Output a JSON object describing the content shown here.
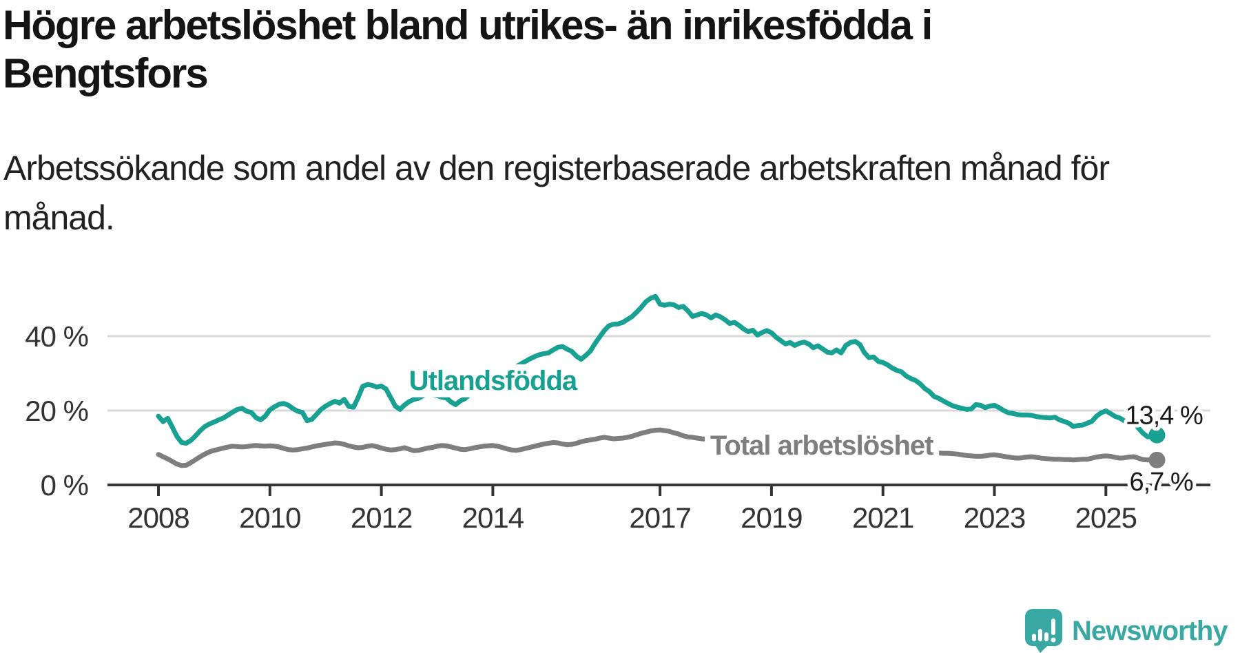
{
  "header": {
    "title_lines": [
      "Högre arbetslöshet bland utrikes- än inrikesfödda i",
      "Bengtsfors"
    ],
    "subtitle_lines": [
      "Arbetssökande som andel av den registerbaserade arbetskraften månad för",
      "månad."
    ]
  },
  "footer": {
    "brand": "Newsworthy",
    "brand_color": "#3aa8a2",
    "logo_icon": "speech-bubble-bar-chart"
  },
  "chart_data": {
    "type": "line",
    "frequency": "monthly",
    "x_start_year": 2008,
    "x_start_month": 1,
    "x_axis": {
      "tick_years": [
        2008,
        2010,
        2012,
        2014,
        2017,
        2019,
        2021,
        2023,
        2025
      ],
      "range_years": [
        2007.1,
        2026.9
      ]
    },
    "y_axis": {
      "ticks": [
        {
          "label": "0 %",
          "value": 0
        },
        {
          "label": "20 %",
          "value": 20
        },
        {
          "label": "40 %",
          "value": 40
        }
      ],
      "range": [
        0,
        55
      ],
      "grid": true
    },
    "grid_color": "#d9d9d9",
    "axis_color": "#333333",
    "legend_position": "inline-labels",
    "series": [
      {
        "name": "Utlandsfödda",
        "color": "#18a092",
        "end_label": "13,4 %",
        "label_pos": {
          "year": 2014.0,
          "value": 28.0
        },
        "values": [
          18.5,
          17.0,
          17.9,
          15.5,
          13.0,
          11.4,
          11.2,
          12.0,
          13.2,
          14.6,
          15.7,
          16.4,
          16.9,
          17.5,
          18.0,
          18.8,
          19.6,
          20.3,
          20.6,
          19.8,
          19.5,
          18.1,
          17.5,
          18.5,
          20.2,
          21.0,
          21.7,
          21.9,
          21.4,
          20.5,
          19.8,
          19.5,
          17.3,
          17.6,
          18.9,
          20.3,
          21.2,
          21.9,
          22.5,
          22.0,
          23.0,
          21.1,
          20.9,
          23.5,
          26.5,
          27.0,
          26.8,
          26.3,
          26.6,
          25.8,
          23.5,
          21.2,
          20.3,
          21.5,
          22.4,
          23.0,
          23.3,
          24.0,
          24.6,
          24.2,
          24.0,
          23.6,
          23.4,
          22.3,
          21.6,
          22.6,
          23.2,
          24.3,
          25.0,
          25.5,
          26.2,
          27.0,
          27.8,
          28.6,
          29.4,
          30.2,
          31.0,
          31.8,
          32.5,
          33.2,
          33.9,
          34.5,
          35.0,
          35.3,
          35.5,
          36.3,
          37.0,
          37.2,
          36.5,
          35.9,
          34.6,
          33.8,
          34.8,
          36.0,
          38.0,
          39.8,
          41.5,
          42.8,
          43.2,
          43.3,
          43.7,
          44.5,
          45.3,
          46.5,
          47.8,
          49.3,
          50.2,
          50.7,
          48.6,
          48.3,
          48.6,
          48.4,
          47.7,
          48.0,
          46.8,
          45.3,
          45.7,
          46.1,
          45.7,
          44.9,
          45.7,
          45.2,
          44.4,
          43.4,
          43.7,
          42.9,
          41.9,
          41.2,
          41.6,
          40.3,
          41.0,
          41.5,
          40.9,
          39.7,
          38.8,
          37.9,
          38.3,
          37.5,
          38.1,
          38.4,
          37.9,
          36.9,
          37.4,
          36.6,
          35.7,
          35.5,
          36.3,
          35.5,
          37.5,
          38.3,
          38.6,
          37.8,
          35.6,
          34.2,
          34.4,
          33.2,
          32.9,
          32.3,
          31.4,
          30.8,
          30.4,
          29.3,
          28.6,
          28.1,
          27.2,
          25.9,
          25.1,
          23.8,
          23.3,
          22.6,
          21.9,
          21.3,
          20.9,
          20.6,
          20.3,
          20.4,
          21.6,
          21.4,
          20.8,
          21.2,
          21.4,
          20.8,
          20.0,
          19.4,
          19.2,
          18.9,
          18.8,
          18.8,
          18.7,
          18.4,
          18.2,
          18.1,
          18.0,
          18.2,
          17.5,
          17.1,
          16.6,
          15.7,
          16.0,
          16.1,
          16.6,
          17.1,
          18.5,
          19.4,
          19.9,
          19.2,
          18.4,
          18.0,
          17.2,
          16.6,
          16.9,
          15.3,
          13.9,
          12.9,
          13.1,
          13.4
        ]
      },
      {
        "name": "Total arbetslöshet",
        "color": "#7e7e7e",
        "end_label": "6,7 %",
        "label_pos": {
          "year": 2019.9,
          "value": 10.6
        },
        "values": [
          8.2,
          7.6,
          7.0,
          6.3,
          5.6,
          5.2,
          5.3,
          6.0,
          6.8,
          7.6,
          8.3,
          8.9,
          9.3,
          9.6,
          9.9,
          10.2,
          10.4,
          10.3,
          10.2,
          10.3,
          10.5,
          10.6,
          10.5,
          10.4,
          10.5,
          10.4,
          10.2,
          9.8,
          9.5,
          9.4,
          9.5,
          9.7,
          9.9,
          10.2,
          10.5,
          10.7,
          10.9,
          11.1,
          11.3,
          11.2,
          10.9,
          10.5,
          10.2,
          10.0,
          10.1,
          10.4,
          10.6,
          10.3,
          9.9,
          9.6,
          9.4,
          9.5,
          9.7,
          10.0,
          9.6,
          9.2,
          9.3,
          9.6,
          9.9,
          10.1,
          10.4,
          10.6,
          10.5,
          10.2,
          9.9,
          9.6,
          9.5,
          9.7,
          10.0,
          10.2,
          10.4,
          10.5,
          10.6,
          10.4,
          10.1,
          9.7,
          9.4,
          9.3,
          9.5,
          9.8,
          10.1,
          10.4,
          10.7,
          11.0,
          11.2,
          11.4,
          11.3,
          11.0,
          10.8,
          10.9,
          11.2,
          11.6,
          11.9,
          12.1,
          12.3,
          12.6,
          12.8,
          12.6,
          12.4,
          12.5,
          12.6,
          12.8,
          13.1,
          13.5,
          13.9,
          14.2,
          14.5,
          14.7,
          14.8,
          14.6,
          14.4,
          14.0,
          13.7,
          13.2,
          12.9,
          12.8,
          12.6,
          12.4,
          12.3,
          12.2,
          12.0,
          11.8,
          11.7,
          11.5,
          11.3,
          11.2,
          11.0,
          10.9,
          10.8,
          10.7,
          10.6,
          10.5,
          10.4,
          10.3,
          10.2,
          10.1,
          10.0,
          9.9,
          9.9,
          9.8,
          9.8,
          9.7,
          9.7,
          9.6,
          9.6,
          9.6,
          9.7,
          9.9,
          10.1,
          10.2,
          10.2,
          10.1,
          10.0,
          9.9,
          9.8,
          9.7,
          9.6,
          9.5,
          9.4,
          9.2,
          9.1,
          9.0,
          8.9,
          8.8,
          8.8,
          8.8,
          8.7,
          8.6,
          8.6,
          8.5,
          8.5,
          8.4,
          8.3,
          8.1,
          7.9,
          7.8,
          7.7,
          7.7,
          7.8,
          8.0,
          8.1,
          7.9,
          7.7,
          7.5,
          7.3,
          7.2,
          7.3,
          7.5,
          7.6,
          7.4,
          7.2,
          7.1,
          7.0,
          6.9,
          6.9,
          6.8,
          6.8,
          6.7,
          6.8,
          6.9,
          6.9,
          7.2,
          7.5,
          7.7,
          7.8,
          7.7,
          7.4,
          7.2,
          7.3,
          7.5,
          7.6,
          7.2,
          6.8,
          6.7,
          6.8,
          6.7
        ]
      }
    ]
  }
}
